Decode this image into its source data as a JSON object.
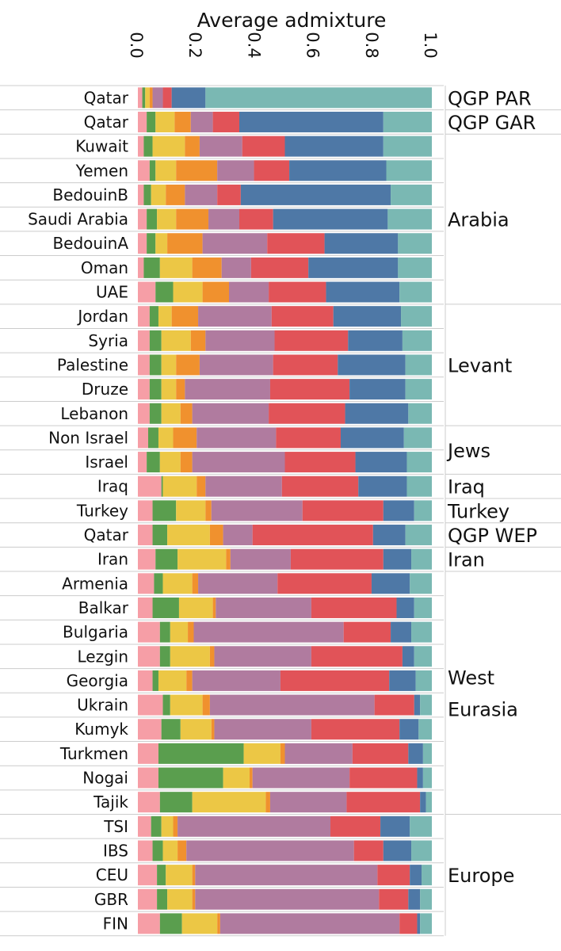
{
  "chart_data": {
    "type": "bar",
    "orientation": "horizontal",
    "stacked": true,
    "title": "Average admixture",
    "xlim": [
      0,
      1.0
    ],
    "x_ticks": [
      "0.0",
      "0.2",
      "0.4",
      "0.6",
      "0.8",
      "1.0"
    ],
    "tick_values": [
      0,
      0.2,
      0.4,
      0.6,
      0.8,
      1.0
    ],
    "component_colors": [
      "#f69ea6",
      "#5a9e4e",
      "#ecc745",
      "#f0912e",
      "#b07b9f",
      "#e15358",
      "#4e78a6",
      "#7ab8b3"
    ],
    "groups": [
      {
        "label": "QGP PAR",
        "count": 1
      },
      {
        "label": "QGP GAR",
        "count": 1
      },
      {
        "label": "Arabia",
        "count": 7
      },
      {
        "label": "Levant",
        "count": 5
      },
      {
        "label": "Jews",
        "count": 2
      },
      {
        "label": "Iraq",
        "count": 1
      },
      {
        "label": "Turkey",
        "count": 1
      },
      {
        "label": "QGP WEP",
        "count": 1
      },
      {
        "label": "Iran",
        "count": 1
      },
      {
        "label": "West\nEurasia",
        "count": 10
      },
      {
        "label": "Europe",
        "count": 5
      }
    ],
    "rows": [
      {
        "label": "Qatar",
        "values": [
          0.015,
          0.01,
          0.015,
          0.01,
          0.035,
          0.03,
          0.115,
          0.77
        ]
      },
      {
        "label": "Qatar",
        "values": [
          0.03,
          0.03,
          0.065,
          0.055,
          0.075,
          0.09,
          0.49,
          0.165
        ]
      },
      {
        "label": "Kuwait",
        "values": [
          0.02,
          0.03,
          0.11,
          0.05,
          0.145,
          0.145,
          0.335,
          0.165
        ]
      },
      {
        "label": "Yemen",
        "values": [
          0.04,
          0.02,
          0.07,
          0.14,
          0.125,
          0.12,
          0.33,
          0.155
        ]
      },
      {
        "label": "BedouinB",
        "values": [
          0.02,
          0.025,
          0.05,
          0.065,
          0.11,
          0.08,
          0.51,
          0.14
        ]
      },
      {
        "label": "Saudi Arabia",
        "values": [
          0.03,
          0.035,
          0.065,
          0.11,
          0.105,
          0.115,
          0.39,
          0.15
        ]
      },
      {
        "label": "BedouinA",
        "values": [
          0.03,
          0.03,
          0.04,
          0.12,
          0.22,
          0.195,
          0.25,
          0.115
        ]
      },
      {
        "label": "Oman",
        "values": [
          0.02,
          0.055,
          0.11,
          0.1,
          0.1,
          0.195,
          0.305,
          0.115
        ]
      },
      {
        "label": "UAE",
        "values": [
          0.06,
          0.06,
          0.1,
          0.09,
          0.135,
          0.195,
          0.25,
          0.11
        ]
      },
      {
        "label": "Jordan",
        "values": [
          0.04,
          0.03,
          0.045,
          0.09,
          0.25,
          0.21,
          0.23,
          0.105
        ]
      },
      {
        "label": "Syria",
        "values": [
          0.04,
          0.04,
          0.1,
          0.05,
          0.235,
          0.25,
          0.185,
          0.1
        ]
      },
      {
        "label": "Palestine",
        "values": [
          0.04,
          0.04,
          0.05,
          0.08,
          0.25,
          0.22,
          0.23,
          0.09
        ]
      },
      {
        "label": "Druze",
        "values": [
          0.04,
          0.04,
          0.05,
          0.03,
          0.29,
          0.27,
          0.19,
          0.09
        ]
      },
      {
        "label": "Lebanon",
        "values": [
          0.04,
          0.04,
          0.065,
          0.04,
          0.26,
          0.26,
          0.215,
          0.08
        ]
      },
      {
        "label": "Non Israel",
        "values": [
          0.035,
          0.035,
          0.05,
          0.08,
          0.27,
          0.22,
          0.215,
          0.095
        ]
      },
      {
        "label": "Israel",
        "values": [
          0.03,
          0.045,
          0.07,
          0.04,
          0.315,
          0.24,
          0.175,
          0.085
        ]
      },
      {
        "label": "Iraq",
        "values": [
          0.08,
          0.005,
          0.115,
          0.03,
          0.26,
          0.26,
          0.165,
          0.085
        ]
      },
      {
        "label": "Turkey",
        "values": [
          0.05,
          0.08,
          0.1,
          0.02,
          0.31,
          0.275,
          0.105,
          0.06
        ]
      },
      {
        "label": "Qatar",
        "values": [
          0.05,
          0.05,
          0.145,
          0.045,
          0.1,
          0.41,
          0.11,
          0.09
        ]
      },
      {
        "label": "Iran",
        "values": [
          0.06,
          0.075,
          0.165,
          0.015,
          0.205,
          0.315,
          0.095,
          0.07
        ]
      },
      {
        "label": "Armenia",
        "values": [
          0.055,
          0.03,
          0.1,
          0.02,
          0.27,
          0.32,
          0.13,
          0.075
        ]
      },
      {
        "label": "Balkar",
        "values": [
          0.05,
          0.09,
          0.115,
          0.01,
          0.325,
          0.29,
          0.06,
          0.06
        ]
      },
      {
        "label": "Bulgaria",
        "values": [
          0.075,
          0.035,
          0.06,
          0.02,
          0.51,
          0.16,
          0.07,
          0.07
        ]
      },
      {
        "label": "Lezgin",
        "values": [
          0.075,
          0.035,
          0.135,
          0.015,
          0.33,
          0.31,
          0.04,
          0.06
        ]
      },
      {
        "label": "Georgia",
        "values": [
          0.05,
          0.02,
          0.095,
          0.02,
          0.3,
          0.37,
          0.09,
          0.055
        ]
      },
      {
        "label": "Ukrain",
        "values": [
          0.085,
          0.025,
          0.11,
          0.025,
          0.56,
          0.135,
          0.02,
          0.04
        ]
      },
      {
        "label": "Kumyk",
        "values": [
          0.08,
          0.065,
          0.105,
          0.01,
          0.33,
          0.3,
          0.065,
          0.045
        ]
      },
      {
        "label": "Turkmen",
        "values": [
          0.07,
          0.29,
          0.125,
          0.015,
          0.23,
          0.19,
          0.05,
          0.03
        ]
      },
      {
        "label": "Nogai",
        "values": [
          0.07,
          0.22,
          0.09,
          0.01,
          0.33,
          0.23,
          0.02,
          0.03
        ]
      },
      {
        "label": "Tajik",
        "values": [
          0.075,
          0.11,
          0.25,
          0.015,
          0.26,
          0.25,
          0.02,
          0.02
        ]
      },
      {
        "label": "TSI",
        "values": [
          0.045,
          0.035,
          0.04,
          0.015,
          0.52,
          0.17,
          0.1,
          0.075
        ]
      },
      {
        "label": "IBS",
        "values": [
          0.05,
          0.035,
          0.05,
          0.03,
          0.57,
          0.1,
          0.095,
          0.07
        ]
      },
      {
        "label": "CEU",
        "values": [
          0.065,
          0.03,
          0.09,
          0.01,
          0.62,
          0.11,
          0.04,
          0.035
        ]
      },
      {
        "label": "GBR",
        "values": [
          0.065,
          0.035,
          0.085,
          0.01,
          0.625,
          0.1,
          0.04,
          0.04
        ]
      },
      {
        "label": "FIN",
        "values": [
          0.075,
          0.075,
          0.12,
          0.01,
          0.61,
          0.06,
          0.01,
          0.04
        ]
      }
    ]
  }
}
